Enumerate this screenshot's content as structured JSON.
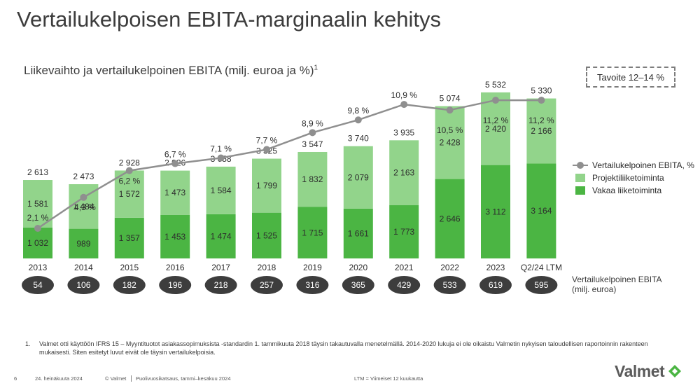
{
  "title": "Vertailukelpoisen EBITA-marginaalin kehitys",
  "subtitle": "Liikevaihto ja vertailukelpoinen EBITA (milj. euroa ja %)",
  "subtitle_sup": "1",
  "target": "Tavoite 12–14 %",
  "chart_data": {
    "type": "bar",
    "stacked": true,
    "title": "Liikevaihto ja vertailukelpoinen EBITA (milj. euroa ja %)",
    "categories": [
      "2013",
      "2014",
      "2015",
      "2016",
      "2017",
      "2018",
      "2019",
      "2020",
      "2021",
      "2022",
      "2023",
      "Q2/24 LTM"
    ],
    "series": [
      {
        "name": "Vakaa liiketoiminta",
        "color": "#4bb543",
        "values": [
          1032,
          989,
          1357,
          1453,
          1474,
          1525,
          1715,
          1661,
          1773,
          2646,
          3112,
          3164
        ],
        "labels": [
          "1 032",
          "989",
          "1 357",
          "1 453",
          "1 474",
          "1 525",
          "1 715",
          "1 661",
          "1 773",
          "2 646",
          "3 112",
          "3 164"
        ]
      },
      {
        "name": "Projektiliiketoiminta",
        "color": "#92d48b",
        "values": [
          1581,
          1484,
          1572,
          1473,
          1584,
          1799,
          1832,
          2079,
          2163,
          2428,
          2420,
          2166
        ],
        "labels": [
          "1 581",
          "1 484",
          "1 572",
          "1 473",
          "1 584",
          "1 799",
          "1 832",
          "2 079",
          "2 163",
          "2 428",
          "2 420",
          "2 166"
        ]
      }
    ],
    "totals": [
      2613,
      2473,
      2928,
      2926,
      3058,
      3325,
      3547,
      3740,
      3935,
      5074,
      5532,
      5330
    ],
    "total_labels": [
      "2 613",
      "2 473",
      "2 928",
      "2 926",
      "3 058",
      "3 325",
      "3 547",
      "3 740",
      "3 935",
      "5 074",
      "5 532",
      "5 330"
    ],
    "line": {
      "name": "Vertailukelpoinen EBITA, %",
      "color": "#8f8f8f",
      "values": [
        2.1,
        4.3,
        6.2,
        6.7,
        7.1,
        7.7,
        8.9,
        9.8,
        10.9,
        10.5,
        11.2,
        11.2
      ],
      "labels": [
        "2,1 %",
        "4,3 %",
        "6,2 %",
        "6,7 %",
        "7,1 %",
        "7,7 %",
        "8,9 %",
        "9,8 %",
        "10,9 %",
        "10,5 %",
        "11,2 %",
        "11,2 %"
      ]
    },
    "ebita": [
      "54",
      "106",
      "182",
      "196",
      "218",
      "257",
      "316",
      "365",
      "429",
      "533",
      "619",
      "595"
    ],
    "ylim": [
      0,
      5600
    ]
  },
  "legend": {
    "line": "Vertailukelpoinen EBITA, %",
    "project": "Projektiliiketoiminta",
    "stable": "Vakaa liiketoiminta"
  },
  "ebita_label_1": "Vertailukelpoinen EBITA",
  "ebita_label_2": "(milj. euroa)",
  "footnote_num": "1.",
  "footnote": "Valmet otti käyttöön IFRS 15 – Myyntituotot asiakassopimuksista -standardin 1. tammikuuta 2018 täysin takautuvalla menetelmällä. 2014-2020 lukuja ei ole oikaistu Valmetin nykyisen taloudellisen raportoinnin rakenteen mukaisesti. Siten esitetyt luvut eivät ole täysin vertailukelpoisia.",
  "footer": {
    "page": "6",
    "date": "24. heinäkuuta 2024",
    "copyright": "© Valmet",
    "report": "Puolivuosikatsaus, tammi–kesäkuu 2024",
    "ltm": "LTM = Viimeiset 12 kuukautta"
  },
  "logo_text": "Valmet",
  "colors": {
    "stable": "#4bb543",
    "project": "#92d48b",
    "line": "#8f8f8f",
    "oval": "#3d3d3d"
  }
}
